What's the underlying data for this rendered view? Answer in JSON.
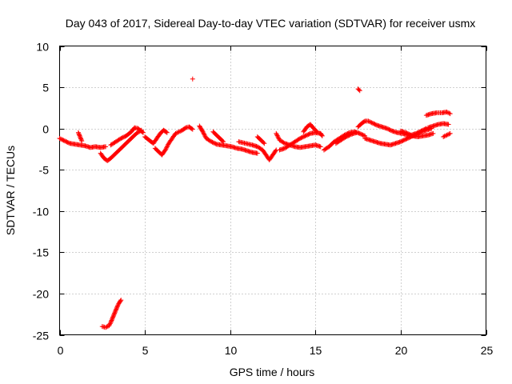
{
  "chart_data": {
    "type": "scatter",
    "title": "Day 043 of 2017, Sidereal Day-to-day VTEC variation (SDTVAR) for receiver usmx",
    "xlabel": "GPS time / hours",
    "ylabel": "SDTVAR / TECUs",
    "xlim": [
      0,
      25
    ],
    "ylim": [
      -25,
      10
    ],
    "xticks": [
      0,
      5,
      10,
      15,
      20,
      25
    ],
    "yticks": [
      10,
      5,
      0,
      -5,
      -10,
      -15,
      -20,
      -25
    ],
    "grid": true,
    "marker": "plus",
    "color": "#ff0000",
    "series": [
      {
        "name": "SDTVAR",
        "segments": [
          [
            [
              0.0,
              -1.2
            ],
            [
              0.3,
              -1.5
            ],
            [
              0.6,
              -1.8
            ],
            [
              0.9,
              -1.9
            ],
            [
              1.2,
              -2.0
            ],
            [
              1.5,
              -2.1
            ],
            [
              1.8,
              -2.3
            ],
            [
              2.1,
              -2.2
            ],
            [
              2.4,
              -2.3
            ],
            [
              2.7,
              -2.2
            ]
          ],
          [
            [
              1.1,
              -0.5
            ],
            [
              1.2,
              -1.0
            ],
            [
              1.3,
              -1.5
            ]
          ],
          [
            [
              2.4,
              -3.0
            ],
            [
              2.6,
              -3.6
            ],
            [
              2.8,
              -3.9
            ],
            [
              3.0,
              -3.6
            ],
            [
              3.3,
              -3.0
            ],
            [
              3.6,
              -2.4
            ],
            [
              3.9,
              -1.8
            ],
            [
              4.2,
              -1.2
            ],
            [
              4.5,
              -0.6
            ],
            [
              4.8,
              -0.2
            ]
          ],
          [
            [
              3.0,
              -2.0
            ],
            [
              3.3,
              -1.6
            ],
            [
              3.6,
              -1.2
            ],
            [
              3.9,
              -0.9
            ],
            [
              4.2,
              -0.4
            ],
            [
              4.4,
              0.1
            ],
            [
              4.6,
              0.0
            ],
            [
              4.9,
              -0.5
            ]
          ],
          [
            [
              5.0,
              -1.0
            ],
            [
              5.3,
              -1.5
            ],
            [
              5.5,
              -1.8
            ],
            [
              5.7,
              -1.2
            ],
            [
              5.9,
              -0.6
            ],
            [
              6.1,
              -0.2
            ],
            [
              6.3,
              -0.5
            ]
          ],
          [
            [
              5.6,
              -2.4
            ],
            [
              5.8,
              -2.8
            ],
            [
              6.0,
              -3.2
            ],
            [
              6.2,
              -2.6
            ],
            [
              6.4,
              -1.8
            ],
            [
              6.6,
              -1.2
            ],
            [
              6.8,
              -0.6
            ],
            [
              7.0,
              -0.4
            ],
            [
              7.2,
              -0.2
            ],
            [
              7.4,
              0.1
            ],
            [
              7.6,
              0.2
            ],
            [
              7.8,
              -0.1
            ]
          ],
          [
            [
              7.8,
              6.0
            ]
          ],
          [
            [
              8.2,
              0.3
            ],
            [
              8.4,
              -0.4
            ],
            [
              8.6,
              -1.2
            ],
            [
              8.9,
              -1.6
            ],
            [
              9.2,
              -1.9
            ],
            [
              9.5,
              -2.0
            ],
            [
              9.8,
              -2.1
            ],
            [
              10.1,
              -2.2
            ],
            [
              10.4,
              -2.4
            ],
            [
              10.7,
              -2.5
            ],
            [
              11.0,
              -2.7
            ],
            [
              11.3,
              -2.9
            ],
            [
              11.6,
              -3.0
            ]
          ],
          [
            [
              9.0,
              -0.4
            ],
            [
              9.2,
              -0.8
            ],
            [
              9.4,
              -1.2
            ],
            [
              9.6,
              -1.6
            ]
          ],
          [
            [
              10.5,
              -1.6
            ],
            [
              10.9,
              -1.8
            ],
            [
              11.3,
              -2.0
            ],
            [
              11.6,
              -2.2
            ],
            [
              11.9,
              -2.6
            ],
            [
              12.1,
              -3.2
            ],
            [
              12.3,
              -3.8
            ],
            [
              12.5,
              -3.2
            ],
            [
              12.7,
              -2.6
            ]
          ],
          [
            [
              11.6,
              -1.0
            ],
            [
              11.8,
              -1.4
            ],
            [
              12.0,
              -1.8
            ]
          ],
          [
            [
              12.7,
              -0.6
            ],
            [
              12.9,
              -1.4
            ],
            [
              13.2,
              -1.8
            ],
            [
              13.5,
              -2.0
            ],
            [
              13.8,
              -2.2
            ],
            [
              14.1,
              -2.3
            ],
            [
              14.4,
              -2.2
            ],
            [
              14.7,
              -2.1
            ],
            [
              15.0,
              -2.0
            ],
            [
              15.3,
              -2.2
            ]
          ],
          [
            [
              12.9,
              -2.6
            ],
            [
              13.2,
              -2.4
            ],
            [
              13.5,
              -2.0
            ],
            [
              13.8,
              -1.6
            ],
            [
              14.1,
              -1.2
            ],
            [
              14.4,
              -0.9
            ],
            [
              14.7,
              -0.6
            ],
            [
              15.0,
              -0.5
            ],
            [
              15.3,
              -0.6
            ]
          ],
          [
            [
              14.3,
              -0.4
            ],
            [
              14.5,
              0.2
            ],
            [
              14.7,
              0.5
            ],
            [
              14.9,
              0.0
            ],
            [
              15.1,
              -0.4
            ]
          ],
          [
            [
              15.3,
              -0.6
            ],
            [
              15.4,
              -0.9
            ]
          ],
          [
            [
              15.5,
              -2.6
            ],
            [
              15.8,
              -2.2
            ],
            [
              16.1,
              -1.6
            ],
            [
              16.4,
              -1.2
            ],
            [
              16.7,
              -0.8
            ],
            [
              17.0,
              -0.5
            ],
            [
              17.3,
              -0.4
            ],
            [
              17.6,
              -0.6
            ],
            [
              17.9,
              -0.9
            ]
          ],
          [
            [
              16.2,
              -1.8
            ],
            [
              16.5,
              -1.4
            ],
            [
              16.8,
              -1.0
            ],
            [
              17.1,
              -0.7
            ],
            [
              17.4,
              -0.5
            ]
          ],
          [
            [
              17.5,
              4.8
            ],
            [
              17.6,
              4.6
            ]
          ],
          [
            [
              17.5,
              0.2
            ],
            [
              17.7,
              0.6
            ],
            [
              17.9,
              0.9
            ],
            [
              18.1,
              0.9
            ],
            [
              18.3,
              0.7
            ],
            [
              18.6,
              0.4
            ],
            [
              18.9,
              0.2
            ],
            [
              19.2,
              0.0
            ],
            [
              19.5,
              -0.3
            ],
            [
              19.8,
              -0.5
            ],
            [
              20.1,
              -0.6
            ],
            [
              20.4,
              -0.8
            ],
            [
              20.7,
              -0.9
            ],
            [
              21.0,
              -1.0
            ],
            [
              21.3,
              -0.9
            ],
            [
              21.6,
              -0.8
            ],
            [
              21.9,
              -0.6
            ]
          ],
          [
            [
              17.9,
              -1.2
            ],
            [
              18.2,
              -1.4
            ],
            [
              18.5,
              -1.6
            ],
            [
              18.8,
              -1.8
            ],
            [
              19.1,
              -1.9
            ],
            [
              19.4,
              -2.0
            ],
            [
              19.7,
              -1.8
            ],
            [
              20.0,
              -1.6
            ],
            [
              20.3,
              -1.3
            ],
            [
              20.6,
              -1.0
            ],
            [
              20.9,
              -0.7
            ],
            [
              21.2,
              -0.4
            ],
            [
              21.5,
              -0.2
            ],
            [
              21.8,
              0.0
            ]
          ],
          [
            [
              20.0,
              -0.3
            ],
            [
              20.3,
              -0.5
            ],
            [
              20.6,
              -0.8
            ],
            [
              20.9,
              -0.6
            ],
            [
              21.2,
              -0.3
            ],
            [
              21.5,
              0.0
            ]
          ],
          [
            [
              21.6,
              0.1
            ],
            [
              21.9,
              0.3
            ],
            [
              22.2,
              0.5
            ],
            [
              22.5,
              0.6
            ],
            [
              22.8,
              0.5
            ]
          ],
          [
            [
              21.5,
              1.6
            ],
            [
              21.8,
              1.8
            ],
            [
              22.1,
              1.9
            ],
            [
              22.4,
              1.9
            ],
            [
              22.7,
              2.0
            ],
            [
              22.9,
              1.8
            ]
          ],
          [
            [
              22.5,
              -1.0
            ],
            [
              22.7,
              -0.8
            ],
            [
              22.9,
              -0.6
            ]
          ],
          [
            [
              2.5,
              -24.0
            ],
            [
              2.7,
              -24.1
            ],
            [
              2.9,
              -23.9
            ],
            [
              3.0,
              -23.5
            ],
            [
              3.1,
              -23.0
            ],
            [
              3.2,
              -22.5
            ],
            [
              3.3,
              -22.0
            ],
            [
              3.4,
              -21.5
            ],
            [
              3.5,
              -21.1
            ],
            [
              3.6,
              -20.8
            ]
          ]
        ]
      }
    ]
  }
}
